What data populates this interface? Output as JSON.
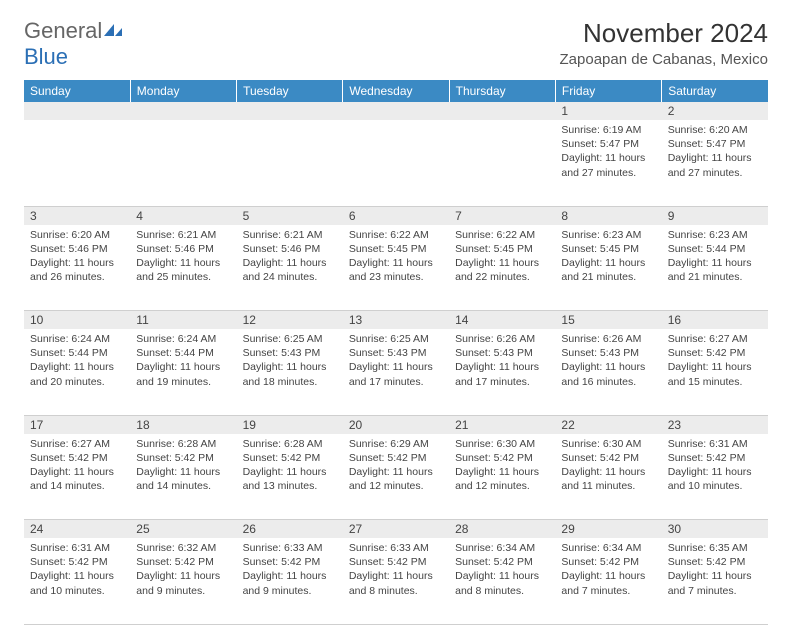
{
  "brand": {
    "text1": "General",
    "text2": "Blue"
  },
  "title": "November 2024",
  "location": "Zapoapan de Cabanas, Mexico",
  "colors": {
    "header_bg": "#3b8ac4",
    "header_text": "#ffffff",
    "daynum_bg": "#ececec",
    "border": "#cfcfcf",
    "brand_blue": "#2b6fb5",
    "brand_gray": "#666666"
  },
  "weekdays": [
    "Sunday",
    "Monday",
    "Tuesday",
    "Wednesday",
    "Thursday",
    "Friday",
    "Saturday"
  ],
  "weeks": [
    [
      null,
      null,
      null,
      null,
      null,
      {
        "n": "1",
        "sunrise": "Sunrise: 6:19 AM",
        "sunset": "Sunset: 5:47 PM",
        "day1": "Daylight: 11 hours",
        "day2": "and 27 minutes."
      },
      {
        "n": "2",
        "sunrise": "Sunrise: 6:20 AM",
        "sunset": "Sunset: 5:47 PM",
        "day1": "Daylight: 11 hours",
        "day2": "and 27 minutes."
      }
    ],
    [
      {
        "n": "3",
        "sunrise": "Sunrise: 6:20 AM",
        "sunset": "Sunset: 5:46 PM",
        "day1": "Daylight: 11 hours",
        "day2": "and 26 minutes."
      },
      {
        "n": "4",
        "sunrise": "Sunrise: 6:21 AM",
        "sunset": "Sunset: 5:46 PM",
        "day1": "Daylight: 11 hours",
        "day2": "and 25 minutes."
      },
      {
        "n": "5",
        "sunrise": "Sunrise: 6:21 AM",
        "sunset": "Sunset: 5:46 PM",
        "day1": "Daylight: 11 hours",
        "day2": "and 24 minutes."
      },
      {
        "n": "6",
        "sunrise": "Sunrise: 6:22 AM",
        "sunset": "Sunset: 5:45 PM",
        "day1": "Daylight: 11 hours",
        "day2": "and 23 minutes."
      },
      {
        "n": "7",
        "sunrise": "Sunrise: 6:22 AM",
        "sunset": "Sunset: 5:45 PM",
        "day1": "Daylight: 11 hours",
        "day2": "and 22 minutes."
      },
      {
        "n": "8",
        "sunrise": "Sunrise: 6:23 AM",
        "sunset": "Sunset: 5:45 PM",
        "day1": "Daylight: 11 hours",
        "day2": "and 21 minutes."
      },
      {
        "n": "9",
        "sunrise": "Sunrise: 6:23 AM",
        "sunset": "Sunset: 5:44 PM",
        "day1": "Daylight: 11 hours",
        "day2": "and 21 minutes."
      }
    ],
    [
      {
        "n": "10",
        "sunrise": "Sunrise: 6:24 AM",
        "sunset": "Sunset: 5:44 PM",
        "day1": "Daylight: 11 hours",
        "day2": "and 20 minutes."
      },
      {
        "n": "11",
        "sunrise": "Sunrise: 6:24 AM",
        "sunset": "Sunset: 5:44 PM",
        "day1": "Daylight: 11 hours",
        "day2": "and 19 minutes."
      },
      {
        "n": "12",
        "sunrise": "Sunrise: 6:25 AM",
        "sunset": "Sunset: 5:43 PM",
        "day1": "Daylight: 11 hours",
        "day2": "and 18 minutes."
      },
      {
        "n": "13",
        "sunrise": "Sunrise: 6:25 AM",
        "sunset": "Sunset: 5:43 PM",
        "day1": "Daylight: 11 hours",
        "day2": "and 17 minutes."
      },
      {
        "n": "14",
        "sunrise": "Sunrise: 6:26 AM",
        "sunset": "Sunset: 5:43 PM",
        "day1": "Daylight: 11 hours",
        "day2": "and 17 minutes."
      },
      {
        "n": "15",
        "sunrise": "Sunrise: 6:26 AM",
        "sunset": "Sunset: 5:43 PM",
        "day1": "Daylight: 11 hours",
        "day2": "and 16 minutes."
      },
      {
        "n": "16",
        "sunrise": "Sunrise: 6:27 AM",
        "sunset": "Sunset: 5:42 PM",
        "day1": "Daylight: 11 hours",
        "day2": "and 15 minutes."
      }
    ],
    [
      {
        "n": "17",
        "sunrise": "Sunrise: 6:27 AM",
        "sunset": "Sunset: 5:42 PM",
        "day1": "Daylight: 11 hours",
        "day2": "and 14 minutes."
      },
      {
        "n": "18",
        "sunrise": "Sunrise: 6:28 AM",
        "sunset": "Sunset: 5:42 PM",
        "day1": "Daylight: 11 hours",
        "day2": "and 14 minutes."
      },
      {
        "n": "19",
        "sunrise": "Sunrise: 6:28 AM",
        "sunset": "Sunset: 5:42 PM",
        "day1": "Daylight: 11 hours",
        "day2": "and 13 minutes."
      },
      {
        "n": "20",
        "sunrise": "Sunrise: 6:29 AM",
        "sunset": "Sunset: 5:42 PM",
        "day1": "Daylight: 11 hours",
        "day2": "and 12 minutes."
      },
      {
        "n": "21",
        "sunrise": "Sunrise: 6:30 AM",
        "sunset": "Sunset: 5:42 PM",
        "day1": "Daylight: 11 hours",
        "day2": "and 12 minutes."
      },
      {
        "n": "22",
        "sunrise": "Sunrise: 6:30 AM",
        "sunset": "Sunset: 5:42 PM",
        "day1": "Daylight: 11 hours",
        "day2": "and 11 minutes."
      },
      {
        "n": "23",
        "sunrise": "Sunrise: 6:31 AM",
        "sunset": "Sunset: 5:42 PM",
        "day1": "Daylight: 11 hours",
        "day2": "and 10 minutes."
      }
    ],
    [
      {
        "n": "24",
        "sunrise": "Sunrise: 6:31 AM",
        "sunset": "Sunset: 5:42 PM",
        "day1": "Daylight: 11 hours",
        "day2": "and 10 minutes."
      },
      {
        "n": "25",
        "sunrise": "Sunrise: 6:32 AM",
        "sunset": "Sunset: 5:42 PM",
        "day1": "Daylight: 11 hours",
        "day2": "and 9 minutes."
      },
      {
        "n": "26",
        "sunrise": "Sunrise: 6:33 AM",
        "sunset": "Sunset: 5:42 PM",
        "day1": "Daylight: 11 hours",
        "day2": "and 9 minutes."
      },
      {
        "n": "27",
        "sunrise": "Sunrise: 6:33 AM",
        "sunset": "Sunset: 5:42 PM",
        "day1": "Daylight: 11 hours",
        "day2": "and 8 minutes."
      },
      {
        "n": "28",
        "sunrise": "Sunrise: 6:34 AM",
        "sunset": "Sunset: 5:42 PM",
        "day1": "Daylight: 11 hours",
        "day2": "and 8 minutes."
      },
      {
        "n": "29",
        "sunrise": "Sunrise: 6:34 AM",
        "sunset": "Sunset: 5:42 PM",
        "day1": "Daylight: 11 hours",
        "day2": "and 7 minutes."
      },
      {
        "n": "30",
        "sunrise": "Sunrise: 6:35 AM",
        "sunset": "Sunset: 5:42 PM",
        "day1": "Daylight: 11 hours",
        "day2": "and 7 minutes."
      }
    ]
  ]
}
